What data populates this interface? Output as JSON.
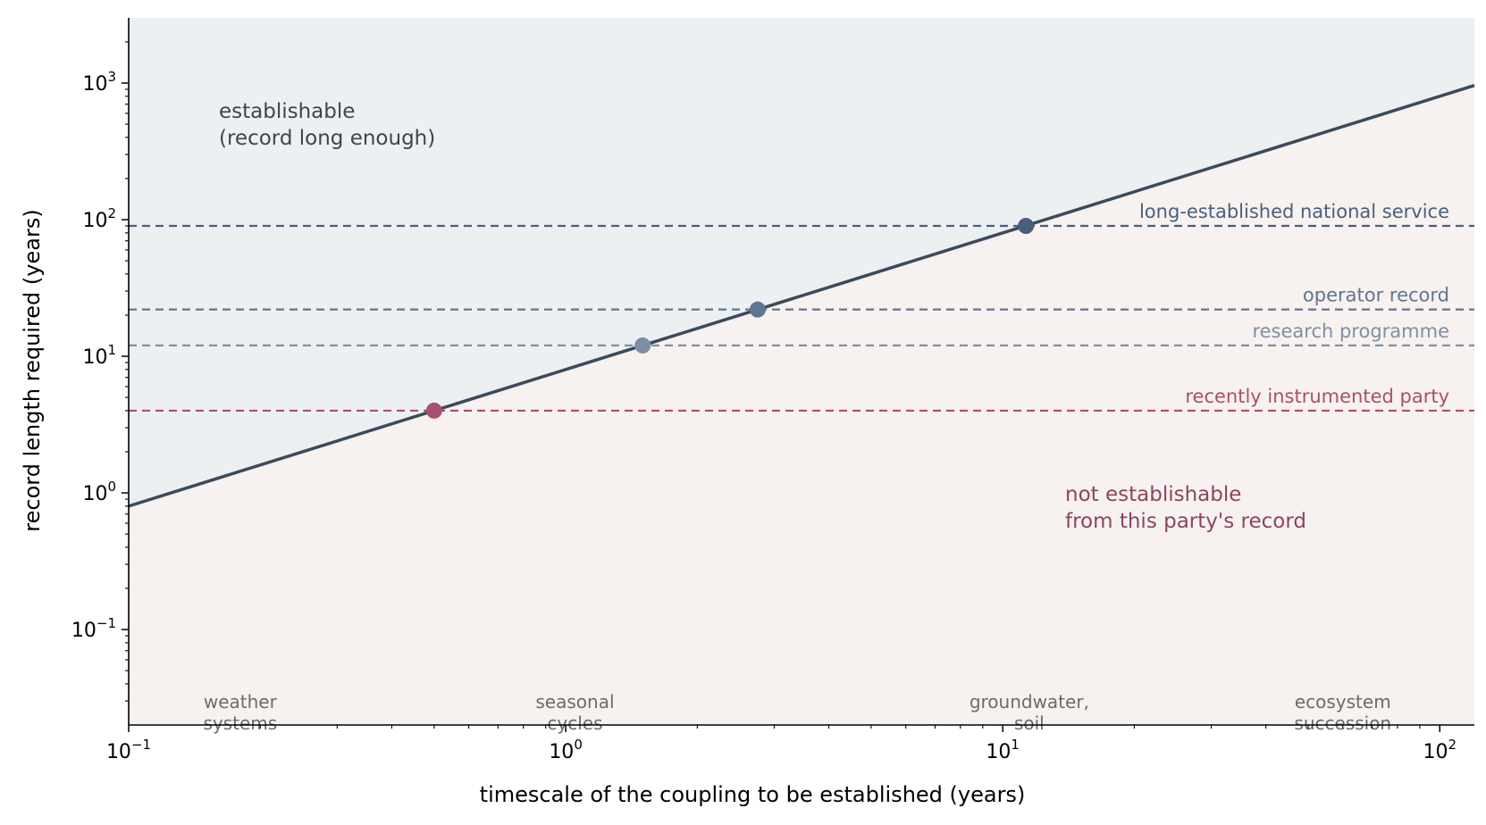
{
  "chart_data": {
    "type": "line",
    "title": "",
    "xlabel": "timescale of the coupling to be established (years)",
    "ylabel": "record length required (years)",
    "x_scale": "log",
    "y_scale": "log",
    "xlim": [
      0.1,
      120
    ],
    "ylim": [
      0.02,
      3000
    ],
    "x_ticks": [
      {
        "value": 0.1,
        "base": "10",
        "exp": "−1"
      },
      {
        "value": 1,
        "base": "10",
        "exp": "0"
      },
      {
        "value": 10,
        "base": "10",
        "exp": "1"
      },
      {
        "value": 100,
        "base": "10",
        "exp": "2"
      }
    ],
    "y_ticks": [
      {
        "value": 0.1,
        "base": "10",
        "exp": "−1"
      },
      {
        "value": 1,
        "base": "10",
        "exp": "0"
      },
      {
        "value": 10,
        "base": "10",
        "exp": "1"
      },
      {
        "value": 100,
        "base": "10",
        "exp": "2"
      },
      {
        "value": 1000,
        "base": "10",
        "exp": "3"
      }
    ],
    "grid": false,
    "boundary_line": {
      "x": [
        0.1,
        120
      ],
      "y": [
        0.8,
        960
      ],
      "color": "#3b4a5c"
    },
    "regions": [
      {
        "line1": "establishable",
        "line2": "(record long enough)",
        "color": "#444444",
        "fill": "#ecf0f3",
        "position": "above-line"
      },
      {
        "line1": "not establishable",
        "line2": "from this party's record",
        "color": "#8a4560",
        "fill": "#f7f1ef",
        "position": "below-line"
      }
    ],
    "reference_lines": [
      {
        "label": "long-established national service",
        "y": 90,
        "x_cross": 11.3,
        "color": "#4a5f7e"
      },
      {
        "label": "operator record",
        "y": 22,
        "x_cross": 2.75,
        "color": "#5f7590"
      },
      {
        "label": "research programme",
        "y": 12,
        "x_cross": 1.5,
        "color": "#7f8fa3"
      },
      {
        "label": "recently instrumented party",
        "y": 4,
        "x_cross": 0.5,
        "color": "#a8506e"
      }
    ],
    "categories": [
      {
        "line1": "weather",
        "line2": "systems",
        "x": 0.18
      },
      {
        "line1": "seasonal",
        "line2": "cycles",
        "x": 1.05
      },
      {
        "line1": "groundwater,",
        "line2": "soil",
        "x": 11.5
      },
      {
        "line1": "ecosystem",
        "line2": "succession",
        "x": 60
      }
    ]
  }
}
